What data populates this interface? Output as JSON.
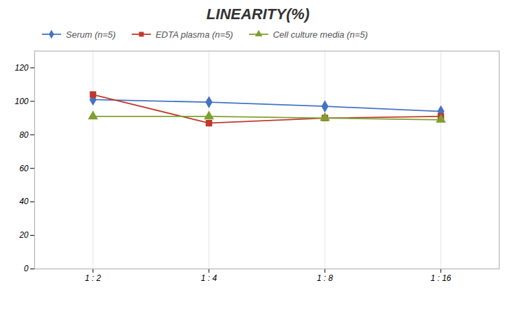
{
  "chart_data": {
    "type": "line",
    "title": "LINEARITY(%)",
    "categories": [
      "1 : 2",
      "1 : 4",
      "1 : 8",
      "1 : 16"
    ],
    "series": [
      {
        "name": "Serum (n=5)",
        "color": "#4472C4",
        "marker": "diamond",
        "values": [
          101,
          99.5,
          97,
          94
        ]
      },
      {
        "name": "EDTA plasma (n=5)",
        "color": "#C0392B",
        "marker": "square",
        "values": [
          104,
          87,
          90,
          91
        ]
      },
      {
        "name": "Cell culture media (n=5)",
        "color": "#7F9F2F",
        "marker": "triangle",
        "values": [
          91,
          91,
          90,
          89
        ]
      }
    ],
    "ylim": [
      0,
      130
    ],
    "yticks": [
      0,
      20,
      40,
      60,
      80,
      100,
      120
    ],
    "grid": "x",
    "legend": "top"
  }
}
